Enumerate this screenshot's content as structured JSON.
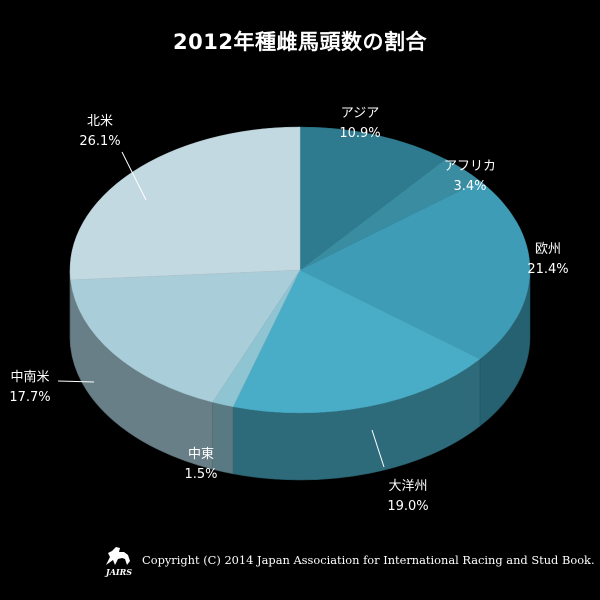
{
  "chart_data": {
    "type": "pie",
    "title": "2012年種雌馬頭数の割合",
    "categories": [
      "アジア",
      "アフリカ",
      "欧州",
      "大洋州",
      "中東",
      "中南米",
      "北米"
    ],
    "values": [
      10.9,
      3.4,
      21.4,
      19.0,
      1.5,
      17.7,
      26.1
    ],
    "value_labels": [
      "10.9%",
      "3.4%",
      "21.4%",
      "19.0%",
      "1.5%",
      "17.7%",
      "26.1%"
    ],
    "unit": "%",
    "legend": "none",
    "start": "12 o'clock",
    "direction": "clockwise",
    "style": "3d",
    "colors": [
      "#2e7a8e",
      "#3a8da1",
      "#3e9cb6",
      "#49adc7",
      "#8fc4d3",
      "#a9cdd9",
      "#c3d9e2"
    ]
  },
  "footer": {
    "copyright": "Copyright (C) 2014 Japan Association for International Racing and Stud Book.",
    "logo_text": "JAIRS"
  }
}
